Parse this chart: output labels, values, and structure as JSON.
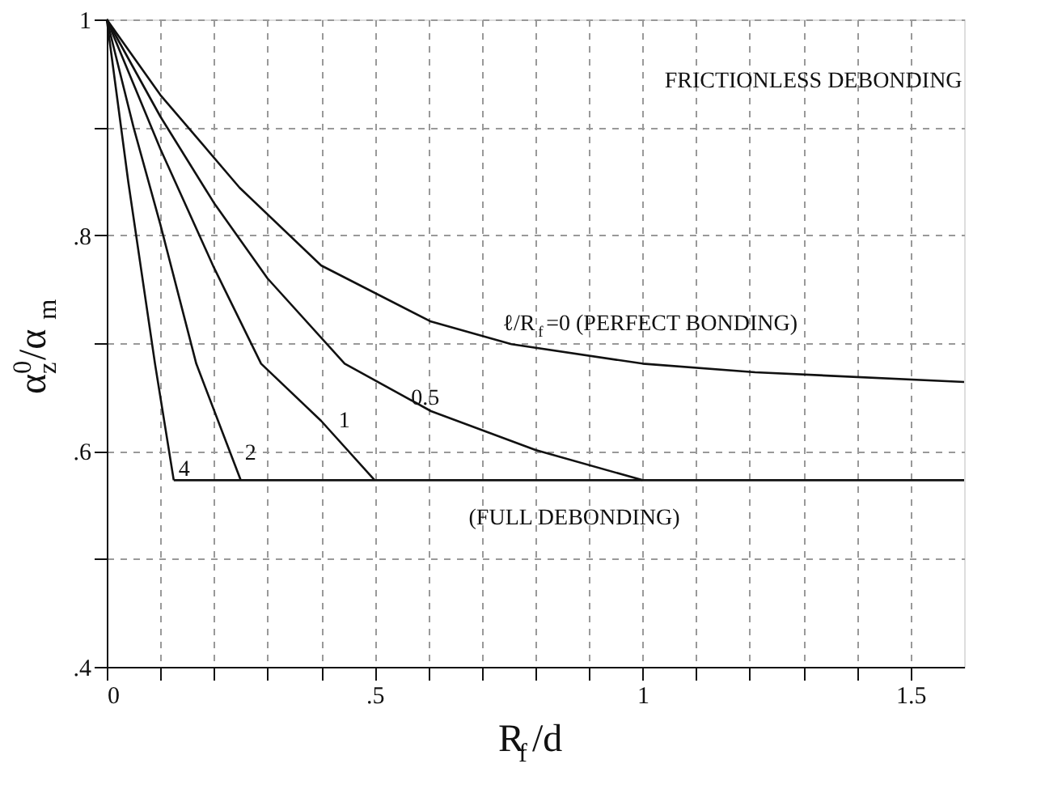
{
  "chart_data": {
    "type": "line",
    "xlabel": "R$_{f}$/d",
    "ylabel": "α$^{0}$$_{z}$/α$_{m}$",
    "xlim": [
      0,
      1.6
    ],
    "ylim": [
      0.4,
      1
    ],
    "xticks": [
      0,
      {
        "value": 0.1,
        "label": null
      },
      {
        "value": 0.2,
        "label": null
      },
      {
        "value": 0.3,
        "label": null
      },
      {
        "value": 0.4,
        "label": null
      },
      {
        "value": 0.5,
        "label": ".5"
      },
      {
        "value": 0.6,
        "label": null
      },
      {
        "value": 0.7,
        "label": null
      },
      {
        "value": 0.8,
        "label": null
      },
      {
        "value": 0.9,
        "label": null
      },
      1,
      {
        "value": 1.1,
        "label": null
      },
      {
        "value": 1.2,
        "label": null
      },
      {
        "value": 1.3,
        "label": null
      },
      {
        "value": 1.4,
        "label": null
      },
      1.5
    ],
    "yticks": [
      {
        "value": 0.4,
        "label": ".4"
      },
      {
        "value": 0.5,
        "label": null
      },
      {
        "value": 0.6,
        "label": ".6"
      },
      {
        "value": 0.7,
        "label": null
      },
      {
        "value": 0.8,
        "label": ".8"
      },
      {
        "value": 0.9,
        "label": null
      },
      1
    ],
    "grid": true,
    "marker": "none",
    "line_style": "solid",
    "series": [
      {
        "color": "#111111",
        "x": [
          0,
          0.1,
          0.248,
          0.4,
          0.605,
          0.755,
          1.0,
          1.21,
          1.6
        ],
        "values": [
          1,
          0.93,
          0.844,
          0.772,
          0.72,
          0.699,
          0.681,
          0.673,
          0.664
        ]
      },
      {
        "color": "#111111",
        "x": [
          0,
          0.1,
          0.2,
          0.3,
          0.444,
          0.605,
          0.8,
          1.0
        ],
        "values": [
          1,
          0.91,
          0.83,
          0.76,
          0.681,
          0.637,
          0.601,
          0.573
        ]
      },
      {
        "color": "#111111",
        "x": [
          0,
          0.1,
          0.2,
          0.288,
          0.4,
          0.5
        ],
        "values": [
          1,
          0.88,
          0.77,
          0.681,
          0.628,
          0.573
        ]
      },
      {
        "color": "#111111",
        "x": [
          0,
          0.05,
          0.1,
          0.167,
          0.25
        ],
        "values": [
          1,
          0.9,
          0.81,
          0.681,
          0.573
        ]
      },
      {
        "color": "#111111",
        "x": [
          0,
          0.04,
          0.09,
          0.125
        ],
        "values": [
          1,
          0.85,
          0.681,
          0.573
        ]
      },
      {
        "color": "#111111",
        "x": [
          0.125,
          1.6
        ],
        "values": [
          0.573,
          0.573
        ]
      }
    ],
    "annotations": [
      "FRICTIONLESS DEBONDING",
      "ℓ/R$_{f}$=0 (PERFECT BONDING)",
      "0.5",
      "1",
      "2",
      "4",
      "(FULL DEBONDING)"
    ]
  }
}
